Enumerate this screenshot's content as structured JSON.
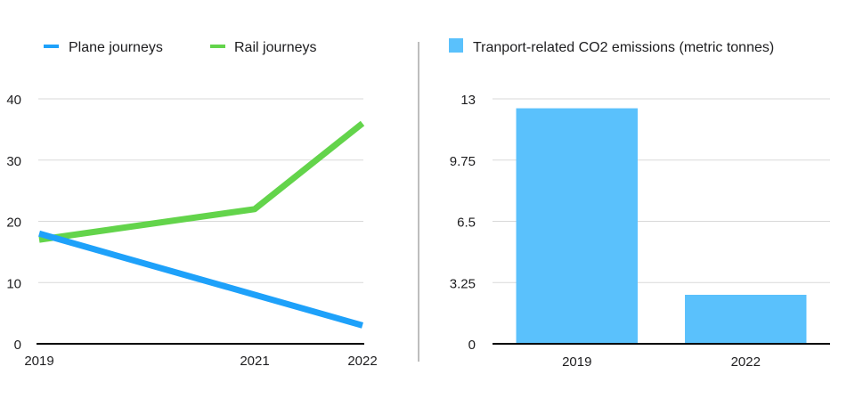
{
  "chart_data": [
    {
      "type": "line",
      "title": "",
      "xlabel": "",
      "ylabel": "",
      "categories": [
        "2019",
        "2021",
        "2022"
      ],
      "series": [
        {
          "name": "Plane journeys",
          "color": "#1ea1fa",
          "values": [
            18,
            8,
            3
          ]
        },
        {
          "name": "Rail journeys",
          "color": "#63d44b",
          "values": [
            17,
            22,
            36
          ]
        }
      ],
      "ylim": [
        0,
        40
      ],
      "yticks": [
        "0",
        "10",
        "20",
        "30",
        "40"
      ],
      "grid": true,
      "legend": "top"
    },
    {
      "type": "bar",
      "title": "",
      "xlabel": "",
      "ylabel": "",
      "categories": [
        "2019",
        "2022"
      ],
      "series": [
        {
          "name": "Tranport-related CO2 emissions (metric tonnes)",
          "color": "#5ac1fc",
          "values": [
            12.5,
            2.6
          ]
        }
      ],
      "ylim": [
        0,
        13
      ],
      "yticks": [
        "0",
        "3.25",
        "6.5",
        "9.75",
        "13"
      ],
      "grid": true,
      "legend": "top"
    }
  ]
}
